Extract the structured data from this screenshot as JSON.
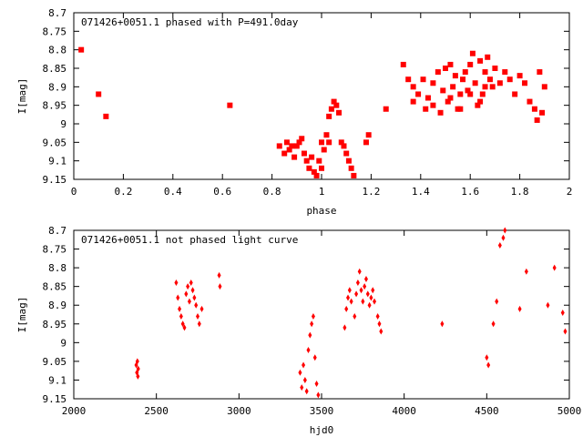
{
  "chart_data": [
    {
      "type": "scatter",
      "title": "071426+0051.1 phased with P=491.0day",
      "xlabel": "phase",
      "ylabel": "I[mag]",
      "xlim": [
        0,
        2
      ],
      "ylim": [
        8.7,
        9.15
      ],
      "y_inverted": true,
      "grid": false,
      "x_ticks": [
        "0",
        "0.2",
        "0.4",
        "0.6",
        "0.8",
        "1",
        "1.2",
        "1.4",
        "1.6",
        "1.8",
        "2"
      ],
      "y_ticks": [
        "8.7",
        "8.75",
        "8.8",
        "8.85",
        "8.9",
        "8.95",
        "9",
        "9.05",
        "9.1",
        "9.15"
      ],
      "marker_color": "#ff0000",
      "x": [
        0.03,
        0.1,
        0.13,
        0.63,
        0.83,
        0.85,
        0.86,
        0.87,
        0.88,
        0.89,
        0.9,
        0.91,
        0.92,
        0.93,
        0.94,
        0.95,
        0.96,
        0.97,
        0.98,
        0.99,
        1.0,
        1.0,
        1.01,
        1.02,
        1.03,
        1.03,
        1.04,
        1.05,
        1.06,
        1.07,
        1.08,
        1.09,
        1.1,
        1.11,
        1.12,
        1.13,
        1.18,
        1.19,
        1.26,
        1.33,
        1.35,
        1.37,
        1.39,
        1.41,
        1.43,
        1.45,
        1.47,
        1.49,
        1.5,
        1.51,
        1.52,
        1.53,
        1.54,
        1.55,
        1.56,
        1.57,
        1.58,
        1.59,
        1.6,
        1.61,
        1.62,
        1.63,
        1.64,
        1.65,
        1.66,
        1.67,
        1.68,
        1.69,
        1.7,
        1.72,
        1.74,
        1.76,
        1.78,
        1.8,
        1.82,
        1.84,
        1.86,
        1.87,
        1.88,
        1.89,
        1.9,
        1.37,
        1.42,
        1.45,
        1.48,
        1.52,
        1.56,
        1.6,
        1.64,
        1.66
      ],
      "y": [
        8.8,
        8.92,
        8.98,
        8.95,
        9.06,
        9.08,
        9.05,
        9.07,
        9.06,
        9.09,
        9.06,
        9.05,
        9.04,
        9.08,
        9.1,
        9.12,
        9.09,
        9.13,
        9.14,
        9.1,
        9.05,
        9.12,
        9.07,
        9.03,
        9.05,
        8.98,
        8.96,
        8.94,
        8.95,
        8.97,
        9.05,
        9.06,
        9.08,
        9.1,
        9.12,
        9.14,
        9.05,
        9.03,
        8.96,
        8.84,
        8.88,
        8.9,
        8.92,
        8.88,
        8.93,
        8.89,
        8.86,
        8.91,
        8.85,
        8.94,
        8.84,
        8.9,
        8.87,
        8.96,
        8.92,
        8.88,
        8.86,
        8.91,
        8.84,
        8.81,
        8.89,
        8.95,
        8.83,
        8.92,
        8.86,
        8.82,
        8.88,
        8.9,
        8.85,
        8.89,
        8.86,
        8.88,
        8.92,
        8.87,
        8.89,
        8.94,
        8.96,
        8.99,
        8.86,
        8.97,
        8.9,
        8.94,
        8.96,
        8.95,
        8.97,
        8.93,
        8.96,
        8.92,
        8.94,
        8.9
      ]
    },
    {
      "type": "scatter",
      "title": "071426+0051.1 not phased light curve",
      "xlabel": "hjd0",
      "ylabel": "I[mag]",
      "xlim": [
        2000,
        5000
      ],
      "ylim": [
        8.7,
        9.15
      ],
      "y_inverted": true,
      "grid": false,
      "x_ticks": [
        "2000",
        "2500",
        "3000",
        "3500",
        "4000",
        "4500",
        "5000"
      ],
      "y_ticks": [
        "8.7",
        "8.75",
        "8.8",
        "8.85",
        "8.9",
        "8.95",
        "9",
        "9.05",
        "9.1",
        "9.15"
      ],
      "marker_color": "#ff0000",
      "x": [
        2378,
        2382,
        2385,
        2388,
        2390,
        2620,
        2630,
        2640,
        2650,
        2660,
        2670,
        2680,
        2690,
        2700,
        2710,
        2720,
        2730,
        2740,
        2750,
        2760,
        2775,
        2880,
        2885,
        3370,
        3380,
        3390,
        3400,
        3410,
        3420,
        3430,
        3440,
        3450,
        3460,
        3470,
        3480,
        3640,
        3650,
        3660,
        3670,
        3680,
        3700,
        3710,
        3720,
        3730,
        3740,
        3750,
        3760,
        3770,
        3780,
        3790,
        3800,
        3810,
        3820,
        3840,
        3850,
        3860,
        4230,
        4500,
        4510,
        4540,
        4560,
        4580,
        4600,
        4610,
        4700,
        4740,
        4870,
        4910,
        4960,
        4975
      ],
      "y": [
        9.06,
        9.08,
        9.05,
        9.09,
        9.07,
        8.84,
        8.88,
        8.91,
        8.93,
        8.95,
        8.96,
        8.87,
        8.85,
        8.89,
        8.84,
        8.86,
        8.88,
        8.9,
        8.93,
        8.95,
        8.91,
        8.82,
        8.85,
        9.08,
        9.12,
        9.06,
        9.1,
        9.13,
        9.02,
        8.98,
        8.95,
        8.93,
        9.04,
        9.11,
        9.14,
        8.96,
        8.91,
        8.88,
        8.86,
        8.89,
        8.93,
        8.87,
        8.84,
        8.81,
        8.86,
        8.89,
        8.85,
        8.83,
        8.87,
        8.9,
        8.88,
        8.86,
        8.89,
        8.93,
        8.95,
        8.97,
        8.95,
        9.04,
        9.06,
        8.95,
        8.89,
        8.74,
        8.72,
        8.7,
        8.91,
        8.81,
        8.9,
        8.8,
        8.92,
        8.97
      ]
    }
  ]
}
